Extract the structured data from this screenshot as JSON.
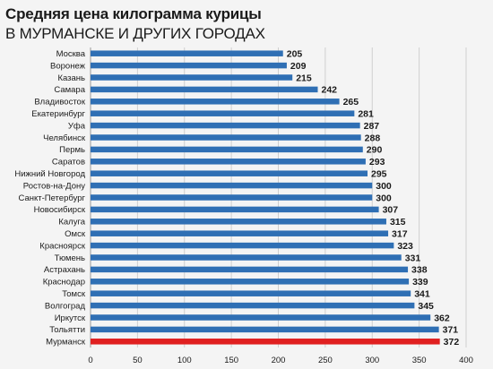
{
  "title": "Средняя цена килограмма курицы",
  "subtitle": "В МУРМАНСКЕ И ДРУГИХ ГОРОДАХ",
  "chart_data": {
    "type": "bar",
    "orientation": "horizontal",
    "title": "Средняя цена килограмма курицы",
    "subtitle": "В МУРМАНСКЕ И ДРУГИХ ГОРОДАХ",
    "categories": [
      "Москва",
      "Воронеж",
      "Казань",
      "Самара",
      "Владивосток",
      "Екатеринбург",
      "Уфа",
      "Челябинск",
      "Пермь",
      "Саратов",
      "Нижний Новгород",
      "Ростов-на-Дону",
      "Санкт-Петербург",
      "Новосибирск",
      "Калуга",
      "Омск",
      "Красноярск",
      "Тюмень",
      "Астрахань",
      "Краснодар",
      "Томск",
      "Волгоград",
      "Иркутск",
      "Тольятти",
      "Мурманск"
    ],
    "values": [
      205,
      209,
      215,
      242,
      265,
      281,
      287,
      288,
      290,
      293,
      295,
      300,
      300,
      307,
      315,
      317,
      323,
      331,
      338,
      339,
      341,
      345,
      362,
      371,
      372
    ],
    "xlim": [
      0,
      400
    ],
    "xticks": [
      0,
      50,
      100,
      150,
      200,
      250,
      300,
      350,
      400
    ],
    "grid": true,
    "colors": {
      "bar": "#2f6fb4",
      "highlight": "#e02020",
      "grid": "#cfcfcf"
    },
    "highlight_category": "Мурманск"
  }
}
